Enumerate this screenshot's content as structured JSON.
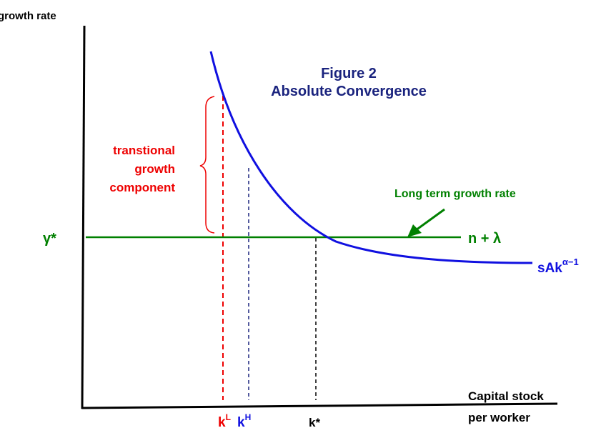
{
  "axes": {
    "y_label": "growth rate",
    "x_label": [
      "Capital stock",
      "per worker"
    ]
  },
  "title": [
    "Figure 2",
    "Absolute Convergence"
  ],
  "brace_label": [
    "transtional",
    "growth",
    "component"
  ],
  "long_term_label": "Long term growth rate",
  "gamma_label": "γ*",
  "line_label": "n + λ",
  "curve_label": {
    "base": "sAk",
    "sup": "α−1"
  },
  "x_markers": [
    {
      "base": "k",
      "sup": "L"
    },
    {
      "base": "k",
      "sup": "H"
    },
    {
      "base": "k*"
    }
  ]
}
